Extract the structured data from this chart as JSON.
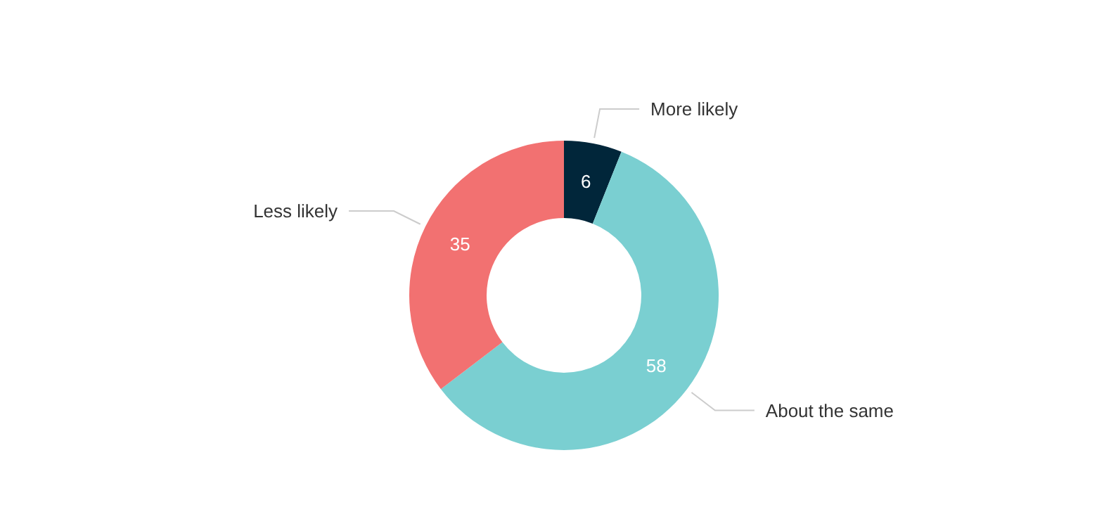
{
  "chart_data": {
    "type": "donut",
    "categories": [
      "More likely",
      "About the same",
      "Less likely"
    ],
    "values": [
      6,
      58,
      35
    ],
    "colors": [
      "#01263a",
      "#7acfd1",
      "#f27171"
    ],
    "data_labels": true
  }
}
